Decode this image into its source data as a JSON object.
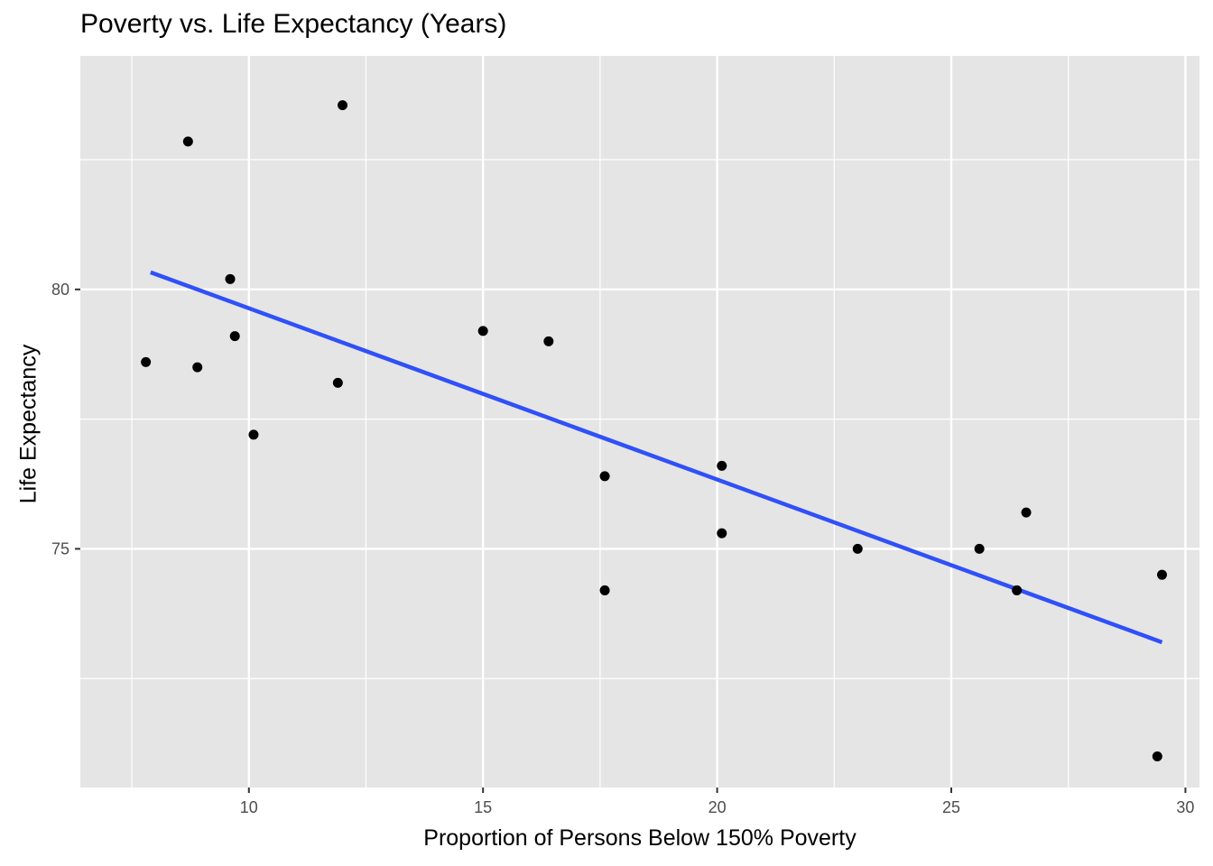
{
  "chart_data": {
    "type": "scatter",
    "title": "Poverty vs. Life Expectancy (Years)",
    "xlabel": "Proportion of Persons Below 150% Poverty",
    "ylabel": "Life Expectancy",
    "xlim": [
      6.4,
      30.3
    ],
    "ylim": [
      70.4,
      84.5
    ],
    "x_ticks": [
      10,
      15,
      20,
      25,
      30
    ],
    "x_tick_labels": [
      "10",
      "15",
      "20",
      "25",
      "30"
    ],
    "y_ticks": [
      75,
      80
    ],
    "y_tick_labels": [
      "75",
      "80"
    ],
    "grid": true,
    "legend": "none",
    "points": [
      {
        "x": 7.8,
        "y": 78.6
      },
      {
        "x": 8.7,
        "y": 82.85
      },
      {
        "x": 8.9,
        "y": 78.5
      },
      {
        "x": 9.6,
        "y": 80.2
      },
      {
        "x": 9.7,
        "y": 79.1
      },
      {
        "x": 10.1,
        "y": 77.2
      },
      {
        "x": 11.9,
        "y": 78.2
      },
      {
        "x": 12.0,
        "y": 83.55
      },
      {
        "x": 15.0,
        "y": 79.2
      },
      {
        "x": 16.4,
        "y": 79.0
      },
      {
        "x": 17.6,
        "y": 76.4
      },
      {
        "x": 17.6,
        "y": 74.2
      },
      {
        "x": 20.1,
        "y": 76.6
      },
      {
        "x": 20.1,
        "y": 75.3
      },
      {
        "x": 23.0,
        "y": 75.0
      },
      {
        "x": 25.6,
        "y": 75.0
      },
      {
        "x": 26.4,
        "y": 74.2
      },
      {
        "x": 26.6,
        "y": 75.7
      },
      {
        "x": 29.4,
        "y": 71.0
      },
      {
        "x": 29.5,
        "y": 74.5
      }
    ],
    "trend_line": {
      "x": [
        7.9,
        29.5
      ],
      "y": [
        80.33,
        73.2
      ]
    },
    "colors": {
      "panel": "#e5e5e5",
      "grid": "#ffffff",
      "points": "#000000",
      "trend": "#3050f8"
    }
  }
}
